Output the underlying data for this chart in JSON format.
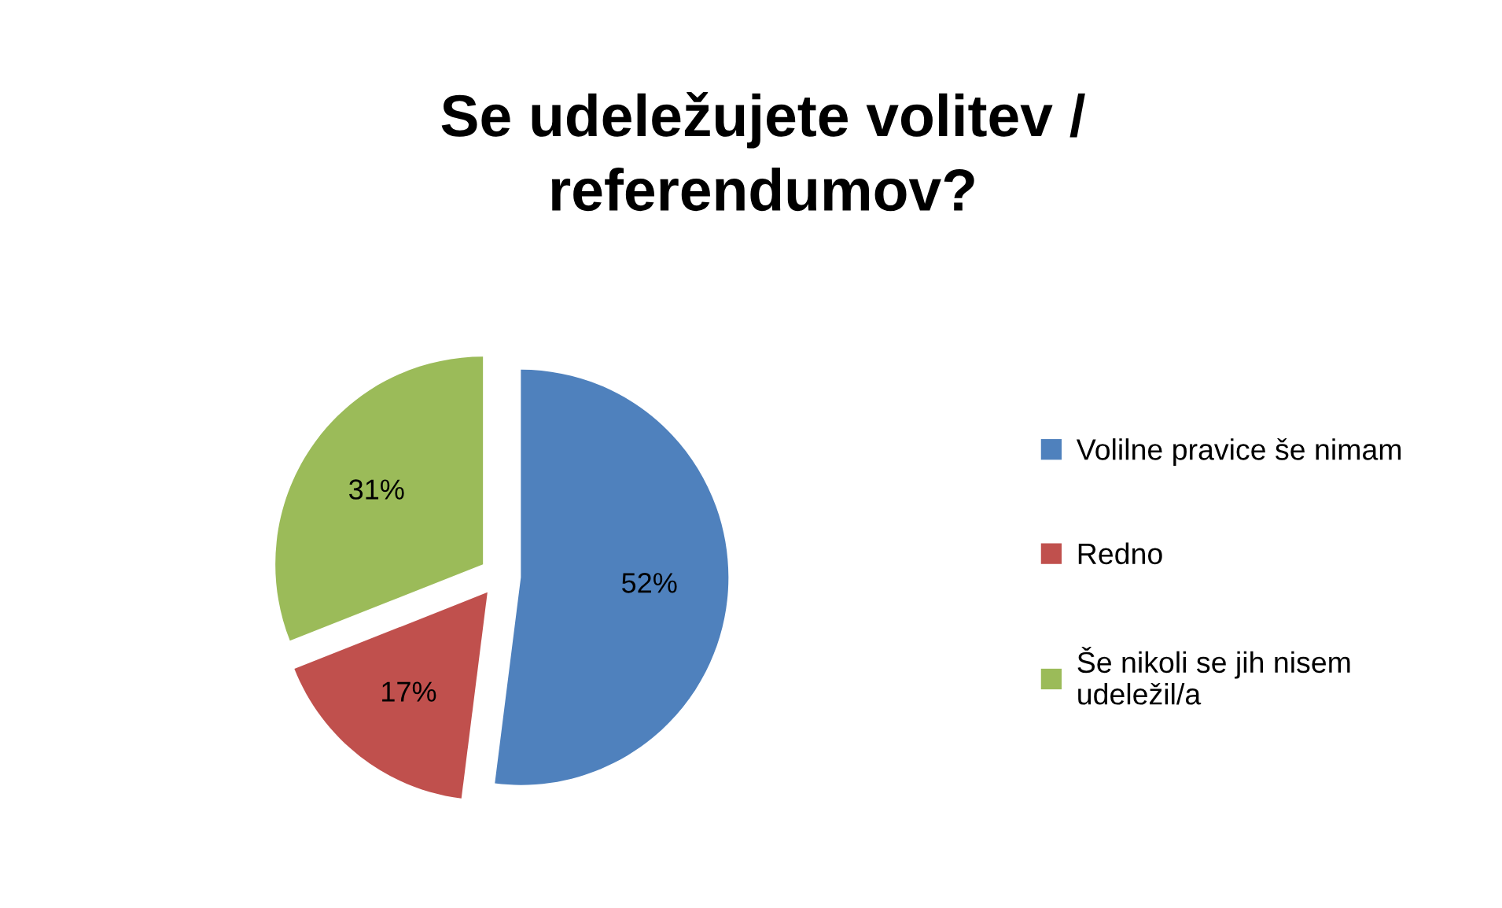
{
  "chart_data": {
    "type": "pie",
    "title": "Se udeležujete volitev /\nreferendumov?",
    "categories": [
      "Volilne pravice še nimam",
      "Redno",
      "Še nikoli se jih nisem\nudeležil/a"
    ],
    "values": [
      52,
      17,
      31
    ],
    "colors": [
      "#4f81bd",
      "#c0504d",
      "#9bbb59"
    ],
    "value_labels": [
      "52%",
      "17%",
      "31%"
    ],
    "legend": "right"
  }
}
